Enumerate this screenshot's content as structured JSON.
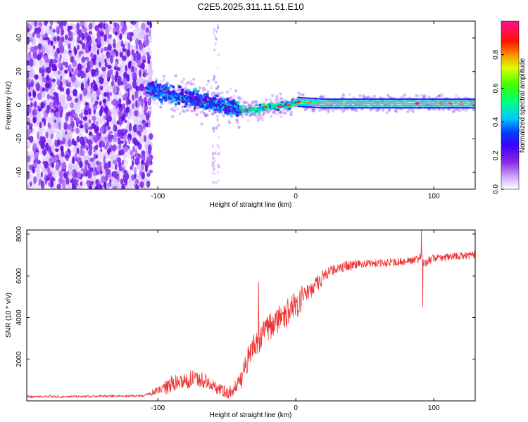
{
  "figure": {
    "title": "C2E5.2025.311.11.51.E10"
  },
  "chart_data": [
    {
      "type": "heatmap",
      "title": "C2E5.2025.311.11.51.E10",
      "xlabel": "Height of straight line (km)",
      "ylabel": "Frequency (Hz)",
      "xlim": [
        -195,
        130
      ],
      "ylim": [
        -50,
        50
      ],
      "xticks": [
        -100,
        0,
        100
      ],
      "yticks": [
        -40,
        -20,
        0,
        20,
        40
      ],
      "xtick_labels": [
        "-100",
        "0",
        "100"
      ],
      "ytick_labels": [
        "-40",
        "-20",
        "0",
        "20",
        "40"
      ],
      "colorbar": {
        "label": "Normalized spectral amplitude",
        "range": [
          0,
          1
        ],
        "ticks": [
          0,
          0.2,
          0.4,
          0.6,
          0.8
        ],
        "tick_labels": [
          "0.0",
          "0.2",
          "0.4",
          "0.6",
          "0.8"
        ],
        "colormap": [
          "#ffffff",
          "#c8a0ff",
          "#8a2be2",
          "#5a00e0",
          "#0000ff",
          "#00ffff",
          "#00ff00",
          "#ffff00",
          "#ff0000",
          "#ff0080"
        ]
      },
      "description_points": {
        "noise_region_x_range": [
          -195,
          -105
        ],
        "signal_center_freq_hz": [
          {
            "x": -105,
            "f": 10
          },
          {
            "x": -90,
            "f": 6
          },
          {
            "x": -75,
            "f": 3
          },
          {
            "x": -60,
            "f": 1
          },
          {
            "x": -45,
            "f": -2
          },
          {
            "x": -35,
            "f": -3
          },
          {
            "x": -20,
            "f": -1
          },
          {
            "x": -5,
            "f": 0
          },
          {
            "x": 0,
            "f": 2
          },
          {
            "x": 20,
            "f": 1
          },
          {
            "x": 60,
            "f": 1
          },
          {
            "x": 90,
            "f": 1
          },
          {
            "x": 130,
            "f": 1
          }
        ],
        "vertical_stripe_x": -58
      }
    },
    {
      "type": "line",
      "xlabel": "Height of straight line (km)",
      "ylabel": "SNR (10 * v/v)",
      "xlim": [
        -195,
        130
      ],
      "ylim": [
        0,
        8200
      ],
      "xticks": [
        -100,
        0,
        100
      ],
      "yticks": [
        2000,
        4000,
        6000,
        8000
      ],
      "xtick_labels": [
        "-100",
        "0",
        "100"
      ],
      "ytick_labels": [
        "2000",
        "4000",
        "6000",
        "8000"
      ],
      "color": "#ee3333",
      "x": [
        -195,
        -150,
        -110,
        -100,
        -90,
        -80,
        -70,
        -60,
        -50,
        -45,
        -40,
        -35,
        -30,
        -25,
        -20,
        -15,
        -10,
        -5,
        0,
        10,
        20,
        30,
        40,
        50,
        60,
        70,
        80,
        88,
        91,
        93,
        95,
        100,
        110,
        120,
        130
      ],
      "values": [
        200,
        220,
        250,
        500,
        800,
        1000,
        1100,
        700,
        400,
        500,
        1000,
        2000,
        2600,
        3100,
        3500,
        3800,
        4000,
        4300,
        4600,
        5300,
        6000,
        6400,
        6500,
        6600,
        6600,
        6650,
        6700,
        6800,
        7000,
        6500,
        6700,
        6850,
        6900,
        6950,
        7000
      ],
      "annotations": {
        "spike_x": -27,
        "spike_value": 5700,
        "peak_x": 91,
        "peak_value": 8200,
        "dip_x": 92,
        "dip_value": 4500
      }
    }
  ]
}
